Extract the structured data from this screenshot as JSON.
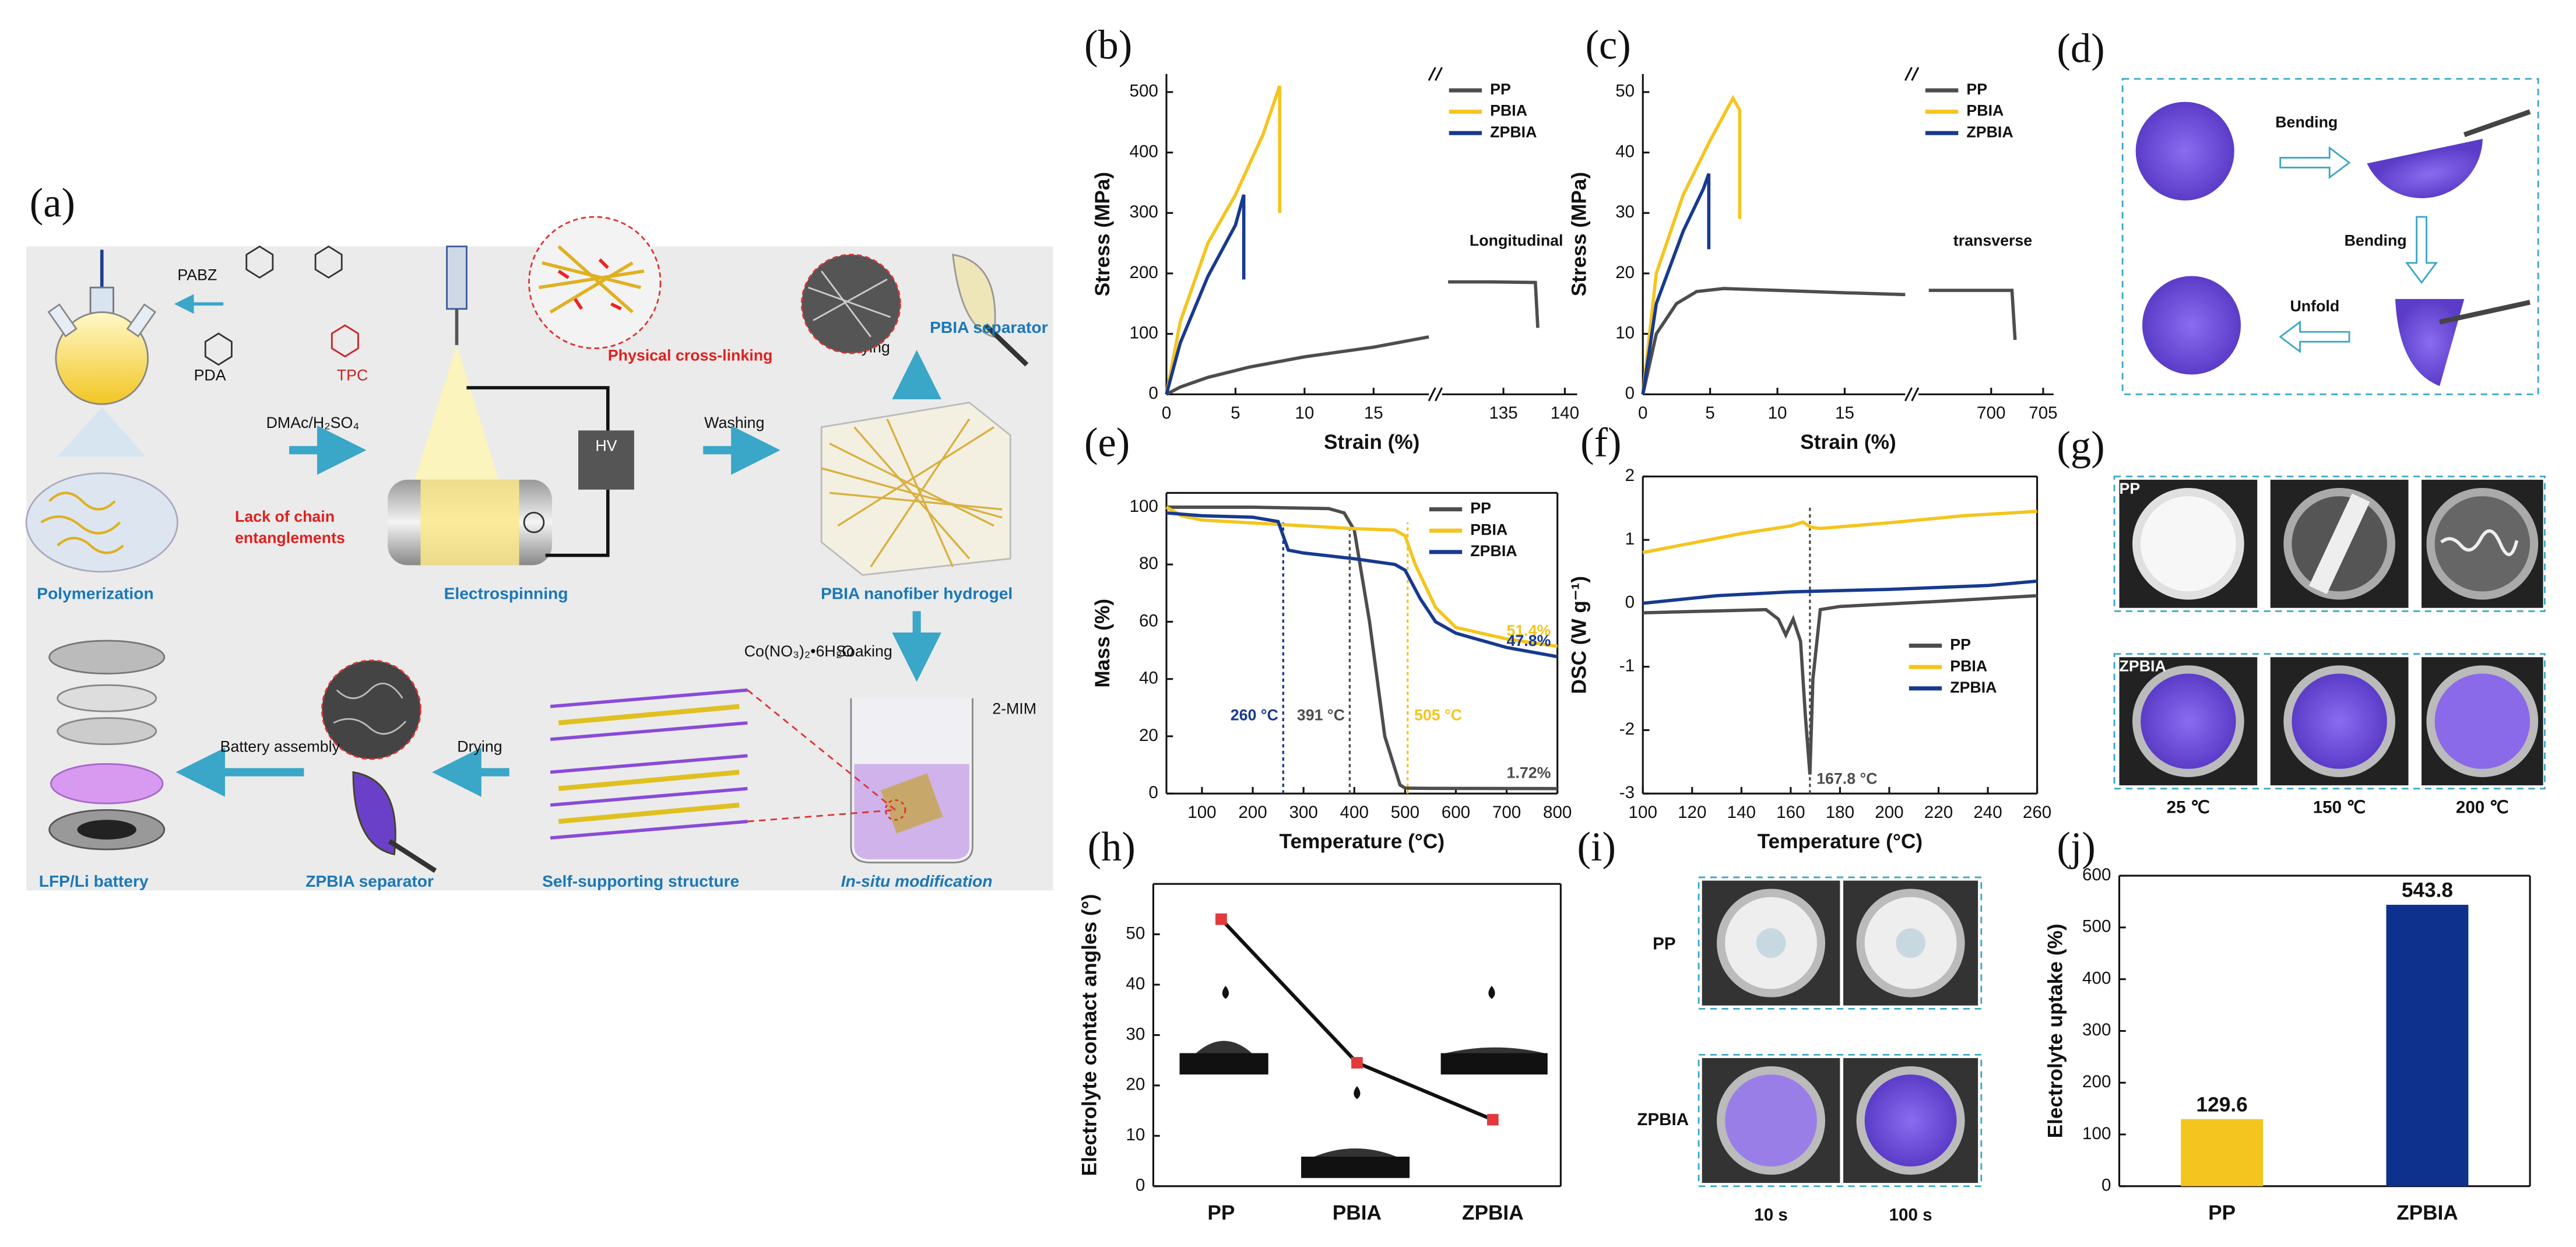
{
  "panel_a": {
    "label": "(a)",
    "texts": {
      "pabz": "PABZ",
      "pda": "PDA",
      "tpc": "TPC",
      "solvent": "DMAc/H₂SO₄",
      "lack1": "Lack of chain",
      "lack2": "entanglements",
      "polymerization": "Polymerization",
      "crosslink": "Physical cross-linking",
      "hv": "HV",
      "electrospinning": "Electrospinning",
      "washing": "Washing",
      "drying_up": "Drying",
      "pbia_separator": "PBIA separator",
      "hydrogel": "PBIA nanofiber hydrogel",
      "soaking": "Soaking",
      "cobalt": "Co(NO₃)₂•6H₂O",
      "mim": "2-MIM",
      "insitu": "In-situ modification",
      "selfsupport": "Self-supporting structure",
      "drying_left": "Drying",
      "zpbia_separator": "ZPBIA separator",
      "assembly": "Battery assembly",
      "battery": "LFP/Li battery"
    }
  },
  "panel_d": {
    "label": "(d)",
    "steps": [
      "Bending",
      "Bending",
      "Unfold"
    ]
  },
  "panel_g": {
    "label": "(g)",
    "rows": [
      "PP",
      "ZPBIA"
    ],
    "temperatures": [
      "25 ℃",
      "150 ℃",
      "200 ℃"
    ]
  },
  "panel_i": {
    "label": "(i)",
    "rows": [
      "PP",
      "ZPBIA"
    ],
    "times": [
      "10 s",
      "100 s"
    ]
  },
  "chart_data": [
    {
      "type": "line",
      "panel": "(b)",
      "xlabel": "Strain (%)",
      "ylabel": "Stress (MPa)",
      "xlim": [
        [
          0,
          19
        ],
        [
          130,
          141
        ]
      ],
      "xticks": [
        0,
        5,
        10,
        15,
        135,
        140
      ],
      "ylim": [
        0,
        530
      ],
      "yticks": [
        0,
        100,
        200,
        300,
        400,
        500
      ],
      "legend": "upper right",
      "annotation": "Longitudinal",
      "series": [
        {
          "name": "PP",
          "color": "#4d4d4d",
          "x": [
            0,
            1,
            3,
            6,
            10,
            15,
            19,
            130,
            130.5,
            134,
            137.6,
            137.8
          ],
          "values": [
            0,
            12,
            28,
            45,
            62,
            78,
            95,
            null,
            186,
            186,
            185,
            110
          ]
        },
        {
          "name": "PBIA",
          "color": "#f4c51f",
          "x": [
            0,
            1,
            3,
            5,
            7,
            8.2,
            8.2
          ],
          "values": [
            0,
            120,
            250,
            330,
            430,
            510,
            300
          ]
        },
        {
          "name": "ZPBIA",
          "color": "#173a8f",
          "x": [
            0,
            1,
            3,
            5,
            5.6,
            5.6
          ],
          "values": [
            0,
            85,
            195,
            280,
            330,
            190
          ]
        }
      ]
    },
    {
      "type": "line",
      "panel": "(c)",
      "xlabel": "Strain (%)",
      "ylabel": "Stress (MPa)",
      "xlim": [
        [
          0,
          19.5
        ],
        [
          693,
          706
        ]
      ],
      "xticks": [
        0,
        5,
        10,
        15,
        700,
        705
      ],
      "ylim": [
        0,
        53
      ],
      "yticks": [
        0,
        10,
        20,
        30,
        40,
        50
      ],
      "legend": "upper right",
      "annotation": "transverse",
      "series": [
        {
          "name": "PP",
          "color": "#4d4d4d",
          "x": [
            0,
            1,
            2.5,
            4,
            6,
            10,
            15,
            19.5,
            693,
            694,
            702,
            702.3
          ],
          "values": [
            0,
            10,
            15,
            17,
            17.5,
            17.2,
            16.8,
            16.5,
            null,
            17.2,
            17.2,
            9
          ]
        },
        {
          "name": "PBIA",
          "color": "#f4c51f",
          "x": [
            0,
            1,
            3,
            5,
            6.7,
            7.2,
            7.2
          ],
          "values": [
            0,
            20,
            33,
            42,
            49,
            47,
            29
          ]
        },
        {
          "name": "ZPBIA",
          "color": "#173a8f",
          "x": [
            0,
            1,
            3,
            4.5,
            4.9,
            4.9
          ],
          "values": [
            0,
            15,
            27,
            34,
            36.5,
            24
          ]
        }
      ]
    },
    {
      "type": "line",
      "panel": "(e)",
      "xlabel": "Temperature (°C)",
      "ylabel": "Mass (%)",
      "xlim": [
        30,
        800
      ],
      "xticks": [
        100,
        200,
        300,
        400,
        500,
        600,
        700,
        800
      ],
      "ylim": [
        0,
        105
      ],
      "yticks": [
        0,
        20,
        40,
        60,
        80,
        100
      ],
      "legend": "upper right",
      "vlines": [
        260,
        391,
        505
      ],
      "vline_labels": [
        "260 °C",
        "391 °C",
        "505 °C"
      ],
      "vline_colors": [
        "#173a8f",
        "#4d4d4d",
        "#f4c51f"
      ],
      "series": [
        {
          "name": "PP",
          "color": "#4d4d4d",
          "x": [
            30,
            200,
            350,
            380,
            400,
            430,
            460,
            490,
            500,
            550,
            800
          ],
          "values": [
            100,
            100,
            99.5,
            98,
            92,
            60,
            20,
            3,
            1.9,
            1.8,
            1.72
          ],
          "end_label": "1.72%"
        },
        {
          "name": "PBIA",
          "color": "#f4c51f",
          "x": [
            30,
            60,
            100,
            200,
            300,
            400,
            480,
            500,
            520,
            560,
            600,
            700,
            800
          ],
          "values": [
            100,
            97,
            95.5,
            94.5,
            93.5,
            92.5,
            92,
            90,
            80,
            65,
            58,
            54,
            51.4
          ],
          "end_label": "51.4%"
        },
        {
          "name": "ZPBIA",
          "color": "#173a8f",
          "x": [
            30,
            100,
            200,
            250,
            260,
            270,
            300,
            400,
            480,
            500,
            530,
            560,
            600,
            700,
            800
          ],
          "values": [
            98,
            97,
            96.5,
            95,
            90,
            85,
            84,
            82,
            80,
            78,
            68,
            60,
            56,
            51,
            47.8
          ],
          "end_label": "47.8%"
        }
      ]
    },
    {
      "type": "line",
      "panel": "(f)",
      "xlabel": "Temperature (°C)",
      "ylabel": "DSC (W g⁻¹)",
      "xlim": [
        100,
        260
      ],
      "xticks": [
        100,
        120,
        140,
        160,
        180,
        200,
        220,
        240,
        260
      ],
      "ylim": [
        -3,
        2
      ],
      "yticks": [
        -3,
        -2,
        -1,
        0,
        1,
        2
      ],
      "legend": "lower right",
      "vlines": [
        167.8
      ],
      "vline_labels": [
        "167.8 °C"
      ],
      "vline_colors": [
        "#4d4d4d"
      ],
      "series": [
        {
          "name": "PP",
          "color": "#4d4d4d",
          "x": [
            100,
            130,
            150,
            155,
            158,
            161,
            164,
            166,
            167.8,
            169,
            172,
            180,
            220,
            260
          ],
          "values": [
            -0.15,
            -0.12,
            -0.1,
            -0.25,
            -0.5,
            -0.25,
            -0.6,
            -1.8,
            -2.7,
            -1.2,
            -0.1,
            -0.05,
            0.03,
            0.12
          ]
        },
        {
          "name": "PBIA",
          "color": "#f4c51f",
          "x": [
            100,
            120,
            140,
            160,
            165,
            168,
            172,
            200,
            230,
            260
          ],
          "values": [
            0.8,
            0.95,
            1.1,
            1.22,
            1.28,
            1.2,
            1.18,
            1.27,
            1.38,
            1.45
          ]
        },
        {
          "name": "ZPBIA",
          "color": "#173a8f",
          "x": [
            100,
            130,
            160,
            200,
            240,
            260
          ],
          "values": [
            0,
            0.12,
            0.18,
            0.22,
            0.28,
            0.35
          ]
        }
      ]
    },
    {
      "type": "dotline",
      "panel": "(h)",
      "ylabel": "Electrolyte contact angles (°)",
      "categories": [
        "PP",
        "PBIA",
        "ZPBIA"
      ],
      "values": [
        53,
        24.5,
        13.2
      ],
      "errors": [
        0.8,
        0.6,
        0.7
      ],
      "ylim": [
        0,
        60
      ],
      "yticks": [
        0,
        10,
        20,
        30,
        40,
        50
      ],
      "color": "#111111",
      "marker_color": "#e23b3b"
    },
    {
      "type": "bar",
      "panel": "(j)",
      "ylabel": "Electrolyte uptake (%)",
      "categories": [
        "PP",
        "ZPBIA"
      ],
      "values": [
        129.6,
        543.8
      ],
      "colors": [
        "#f4c51f",
        "#0d318c"
      ],
      "ylim": [
        0,
        600
      ],
      "yticks": [
        0,
        100,
        200,
        300,
        400,
        500,
        600
      ]
    }
  ]
}
